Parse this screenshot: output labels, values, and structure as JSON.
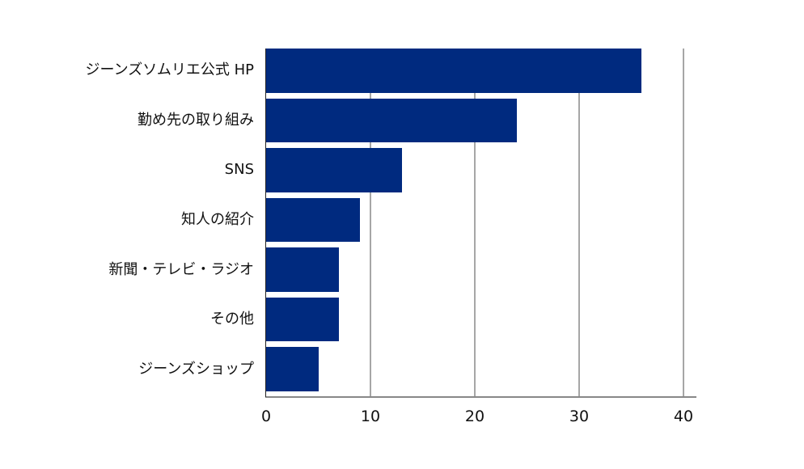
{
  "chart_data": {
    "type": "bar",
    "orientation": "horizontal",
    "title": "",
    "xlabel": "",
    "ylabel": "",
    "categories": [
      "ジーンズソムリエ公式 HP",
      "勤め先の取り組み",
      "SNS",
      "知人の紹介",
      "新聞・テレビ・ラジオ",
      "その他",
      "ジーンズショップ"
    ],
    "values": [
      36,
      24,
      13,
      9,
      7,
      7,
      5
    ],
    "xlim": [
      0,
      40
    ],
    "xticks": [
      "0",
      "10",
      "20",
      "30",
      "40"
    ],
    "grid": "vertical",
    "legend": "none",
    "bar_color": "#002a7f",
    "grid_color": "#a6a6a6"
  }
}
